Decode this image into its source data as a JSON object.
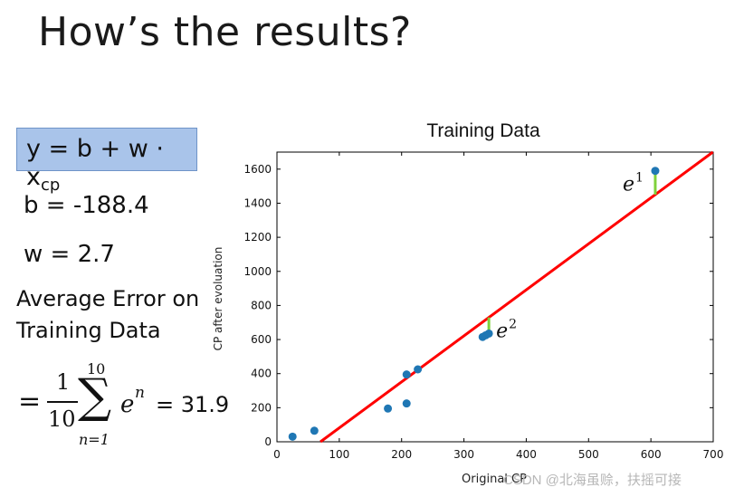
{
  "slide": {
    "title": "How’s the results?",
    "formula_main": "y = b + w · x",
    "formula_sub": "cp",
    "b_line": "b = -188.4",
    "w_line": "w = 2.7",
    "avg_line1": "Average Error on",
    "avg_line2": "Training Data",
    "eq_sign": "=",
    "frac_num": "1",
    "frac_den": "10",
    "sum_symbol": "∑",
    "sum_upper": "10",
    "sum_lower": "n=1",
    "sum_term_base": "e",
    "sum_term_sup": "n",
    "result": "= 31.9"
  },
  "chart_data": {
    "type": "scatter",
    "title": "Training Data",
    "xlabel": "Original CP",
    "ylabel": "CP after evoluation",
    "xlim": [
      0,
      700
    ],
    "ylim": [
      0,
      1700
    ],
    "x_ticks": [
      "0",
      "100",
      "200",
      "300",
      "400",
      "500",
      "600",
      "700"
    ],
    "y_ticks": [
      "0",
      "200",
      "400",
      "600",
      "800",
      "1000",
      "1200",
      "1400",
      "1600"
    ],
    "points": [
      {
        "x": 25,
        "y": 30
      },
      {
        "x": 60,
        "y": 65
      },
      {
        "x": 178,
        "y": 195
      },
      {
        "x": 208,
        "y": 225
      },
      {
        "x": 208,
        "y": 395
      },
      {
        "x": 226,
        "y": 425
      },
      {
        "x": 330,
        "y": 615
      },
      {
        "x": 335,
        "y": 625
      },
      {
        "x": 340,
        "y": 635
      },
      {
        "x": 607,
        "y": 1590
      }
    ],
    "fit_line": {
      "b": -188.4,
      "w": 2.7
    },
    "error_annotations": [
      {
        "label": "e",
        "sup": "1",
        "x": 607
      },
      {
        "label": "e",
        "sup": "2",
        "x": 340
      }
    ],
    "colors": {
      "points": "#1f77b4",
      "line": "#ff0000",
      "error": "#7fd13b"
    }
  },
  "watermark": "CSDN @北海虽赊，扶摇可接"
}
